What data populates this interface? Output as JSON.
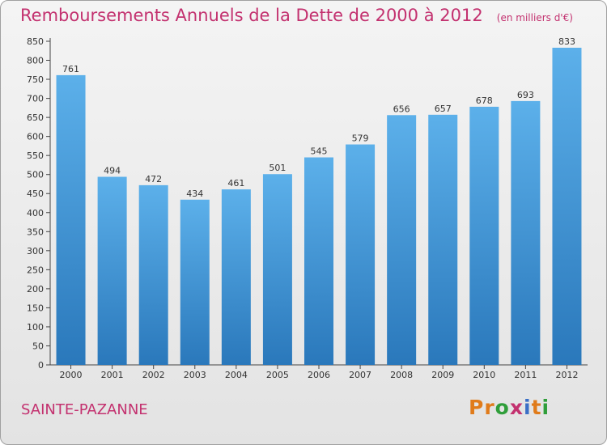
{
  "header": {
    "title": "Remboursements Annuels de la Dette de 2000 à 2012",
    "subtitle": "(en milliers d'€)"
  },
  "footer": {
    "commune": "SAINTE-PAZANNE",
    "brand": "Proxiti",
    "brand_colors": [
      "#e07b1a",
      "#e07b1a",
      "#2f9e3a",
      "#c3316f",
      "#3a6fc6",
      "#e07b1a",
      "#2f9e3a"
    ]
  },
  "chart_data": {
    "type": "bar",
    "categories": [
      "2000",
      "2001",
      "2002",
      "2003",
      "2004",
      "2005",
      "2006",
      "2007",
      "2008",
      "2009",
      "2010",
      "2011",
      "2012"
    ],
    "values": [
      761,
      494,
      472,
      434,
      461,
      501,
      545,
      579,
      656,
      657,
      678,
      693,
      833
    ],
    "ylim": [
      0,
      850
    ],
    "yticks": [
      0,
      50,
      100,
      150,
      200,
      250,
      300,
      350,
      400,
      450,
      500,
      550,
      600,
      650,
      700,
      750,
      800,
      850
    ],
    "grid": false,
    "colors": {
      "bar_top": "#5cb0ea",
      "bar_bottom": "#2a78bb",
      "title": "#c3316f"
    }
  }
}
